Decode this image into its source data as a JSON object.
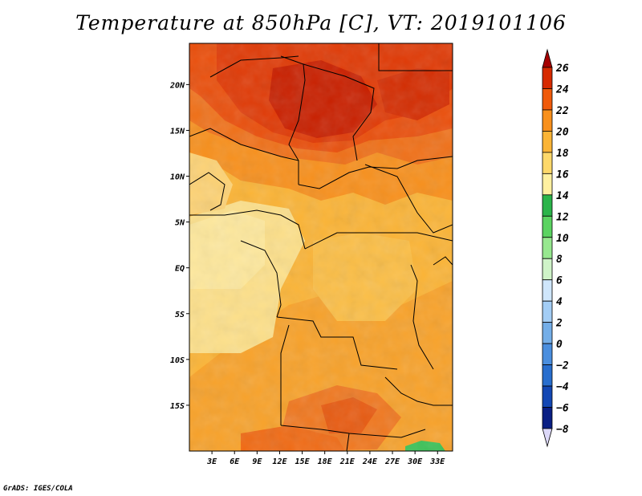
{
  "title": "Temperature at 850hPa [C], VT: 2019101106",
  "credit": "GrADS: IGES/COLA",
  "map": {
    "lat_labels": [
      "20N",
      "15N",
      "10N",
      "5N",
      "EQ",
      "5S",
      "10S",
      "15S"
    ],
    "lat_values": [
      20,
      15,
      10,
      5,
      0,
      -5,
      -10,
      -15
    ],
    "lon_labels": [
      "3E",
      "6E",
      "9E",
      "12E",
      "15E",
      "18E",
      "21E",
      "24E",
      "27E",
      "30E",
      "33E"
    ],
    "lon_values": [
      3,
      6,
      9,
      12,
      15,
      18,
      21,
      24,
      27,
      30,
      33
    ],
    "lon_range": [
      0,
      35
    ],
    "lat_range": [
      -20,
      24.5
    ]
  },
  "colorbar": {
    "levels": [
      "26",
      "24",
      "22",
      "20",
      "18",
      "16",
      "14",
      "12",
      "10",
      "8",
      "6",
      "4",
      "2",
      "0",
      "−2",
      "−4",
      "−6",
      "−8"
    ],
    "colors": [
      "#a50000",
      "#d72a00",
      "#f05a0a",
      "#f8901c",
      "#fbb436",
      "#fdd86a",
      "#fff0a0",
      "#2bb44a",
      "#5bd361",
      "#97e88f",
      "#cff3c8",
      "#cfe6fb",
      "#a3cdf5",
      "#74aee8",
      "#4a8ede",
      "#286ece",
      "#1347b4",
      "#0a1f84",
      "#020860",
      "#dcd8f8"
    ]
  }
}
